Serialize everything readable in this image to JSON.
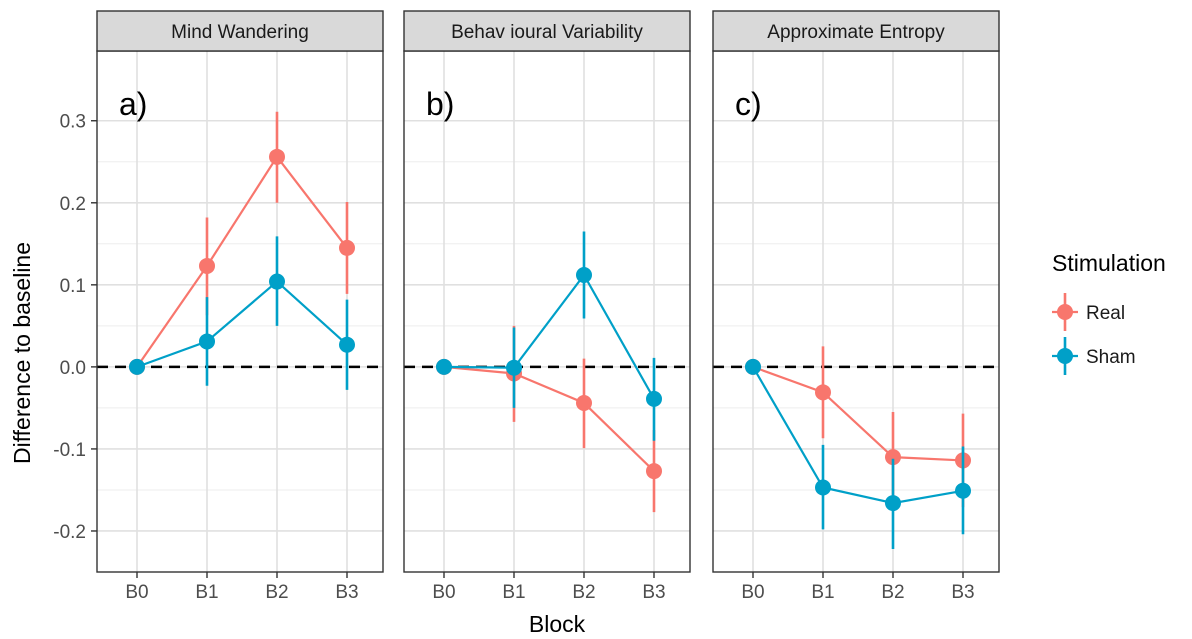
{
  "chart_data": {
    "type": "line",
    "xlabel": "Block",
    "ylabel": "Difference to baseline",
    "categories": [
      "B0",
      "B1",
      "B2",
      "B3"
    ],
    "ylim": [
      -0.25,
      0.385
    ],
    "yticks": [
      -0.2,
      -0.1,
      0.0,
      0.1,
      0.2,
      0.3
    ],
    "ytick_labels": [
      "-0.2",
      "-0.1",
      "0.0",
      "0.1",
      "0.2",
      "0.3"
    ],
    "reference_line": {
      "y": 0.0,
      "style": "dashed"
    },
    "grid": true,
    "legend": {
      "title": "Stimulation",
      "position": "right",
      "entries": [
        {
          "name": "Real",
          "color": "#F8766D"
        },
        {
          "name": "Sham",
          "color": "#00A0C8"
        }
      ]
    },
    "panels": [
      {
        "strip": "Mind Wandering",
        "tag": "a)",
        "series": [
          {
            "name": "Real",
            "values": [
              0.0,
              0.123,
              0.256,
              0.145
            ],
            "lower": [
              0.0,
              0.063,
              0.2,
              0.089
            ],
            "upper": [
              0.0,
              0.182,
              0.311,
              0.201
            ]
          },
          {
            "name": "Sham",
            "values": [
              0.0,
              0.031,
              0.104,
              0.027
            ],
            "lower": [
              0.0,
              -0.023,
              0.05,
              -0.028
            ],
            "upper": [
              0.0,
              0.085,
              0.159,
              0.082
            ]
          }
        ]
      },
      {
        "strip": "Behav ioural Variability",
        "tag": "b)",
        "series": [
          {
            "name": "Real",
            "values": [
              0.0,
              -0.008,
              -0.044,
              -0.127
            ],
            "lower": [
              0.0,
              -0.067,
              -0.099,
              -0.177
            ],
            "upper": [
              0.0,
              0.05,
              0.01,
              -0.077
            ]
          },
          {
            "name": "Sham",
            "values": [
              0.0,
              -0.001,
              0.112,
              -0.039
            ],
            "lower": [
              0.0,
              -0.05,
              0.059,
              -0.09
            ],
            "upper": [
              0.0,
              0.048,
              0.165,
              0.011
            ]
          }
        ]
      },
      {
        "strip": "Approximate Entropy",
        "tag": "c)",
        "series": [
          {
            "name": "Real",
            "values": [
              0.0,
              -0.031,
              -0.11,
              -0.114
            ],
            "lower": [
              0.0,
              -0.087,
              -0.165,
              -0.171
            ],
            "upper": [
              0.0,
              0.025,
              -0.055,
              -0.057
            ]
          },
          {
            "name": "Sham",
            "values": [
              0.0,
              -0.147,
              -0.166,
              -0.151
            ],
            "lower": [
              0.0,
              -0.198,
              -0.222,
              -0.204
            ],
            "upper": [
              0.0,
              -0.095,
              -0.112,
              -0.097
            ]
          }
        ]
      }
    ]
  }
}
